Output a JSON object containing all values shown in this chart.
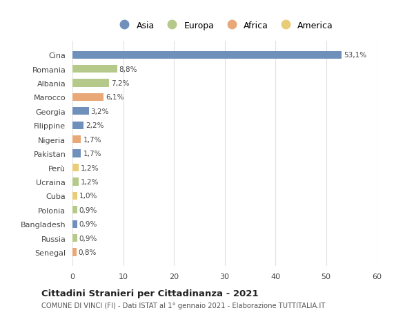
{
  "countries": [
    "Cina",
    "Romania",
    "Albania",
    "Marocco",
    "Georgia",
    "Filippine",
    "Nigeria",
    "Pakistan",
    "Perù",
    "Ucraina",
    "Cuba",
    "Polonia",
    "Bangladesh",
    "Russia",
    "Senegal"
  ],
  "values": [
    53.1,
    8.8,
    7.2,
    6.1,
    3.2,
    2.2,
    1.7,
    1.7,
    1.2,
    1.2,
    1.0,
    0.9,
    0.9,
    0.9,
    0.8
  ],
  "labels": [
    "53,1%",
    "8,8%",
    "7,2%",
    "6,1%",
    "3,2%",
    "2,2%",
    "1,7%",
    "1,7%",
    "1,2%",
    "1,2%",
    "1,0%",
    "0,9%",
    "0,9%",
    "0,9%",
    "0,8%"
  ],
  "continents": [
    "Asia",
    "Europa",
    "Europa",
    "Africa",
    "Asia",
    "Asia",
    "Africa",
    "Asia",
    "America",
    "Europa",
    "America",
    "Europa",
    "Asia",
    "Europa",
    "Africa"
  ],
  "colors": {
    "Asia": "#7090bc",
    "Europa": "#b5c98a",
    "Africa": "#e8a878",
    "America": "#e8cc78"
  },
  "legend_order": [
    "Asia",
    "Europa",
    "Africa",
    "America"
  ],
  "xlim": [
    0,
    60
  ],
  "xticks": [
    0,
    10,
    20,
    30,
    40,
    50,
    60
  ],
  "title": "Cittadini Stranieri per Cittadinanza - 2021",
  "subtitle": "COMUNE DI VINCI (FI) - Dati ISTAT al 1° gennaio 2021 - Elaborazione TUTTITALIA.IT",
  "background_color": "#ffffff",
  "grid_color": "#e0e0e0",
  "bar_height": 0.55
}
